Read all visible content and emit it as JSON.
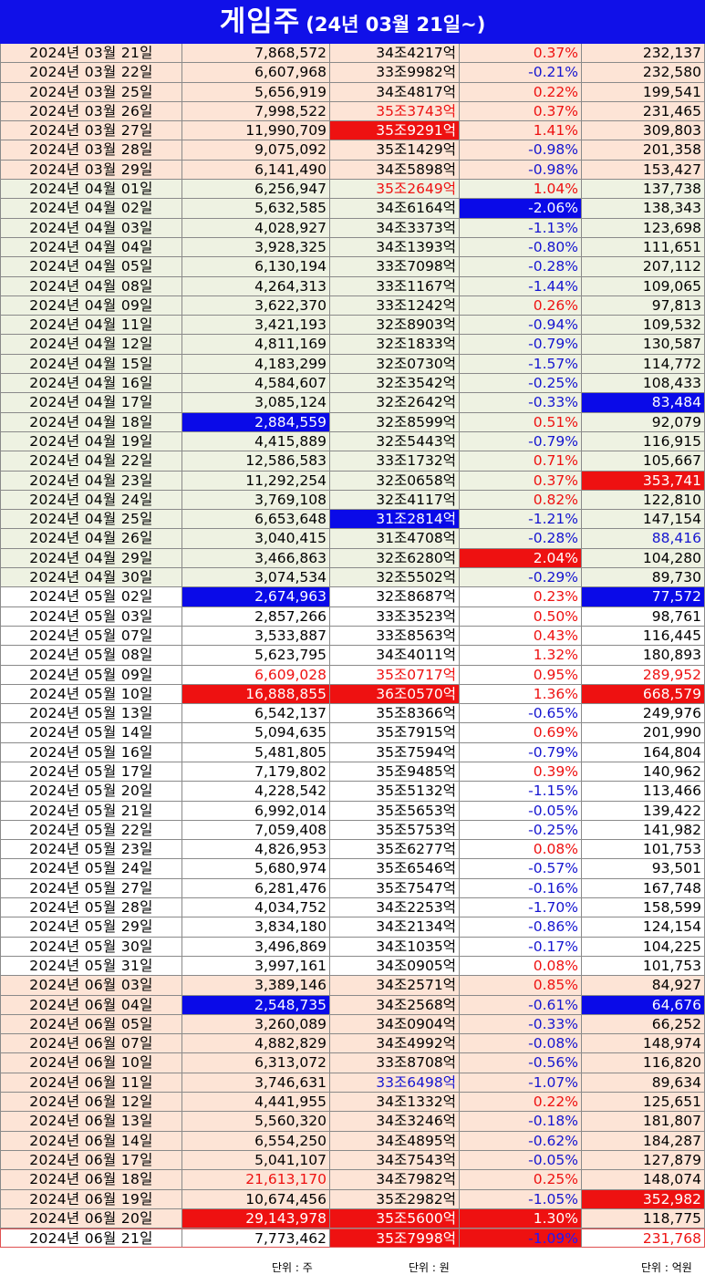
{
  "title": {
    "main": "게임주",
    "sub": "(24년 03월 21일~)"
  },
  "units": {
    "volume": "단위 : 주",
    "cap": "단위 : 원",
    "amount": "단위 : 억원"
  },
  "colors": {
    "title_bg": "#1010e8",
    "peach": "#fde4d6",
    "green": "#eef2e2",
    "red": "#ee1111",
    "blue": "#1515d0",
    "highlight_blue": "#0a0ae8"
  },
  "columns": [
    "date",
    "volume",
    "market_cap",
    "change",
    "amount"
  ],
  "rows": [
    {
      "date": "2024년 03월 21일",
      "volume": "7,868,572",
      "cap": "34조4217억",
      "chg": "0.37%",
      "amt": "232,137",
      "bg": "peach"
    },
    {
      "date": "2024년 03월 22일",
      "volume": "6,607,968",
      "cap": "33조9982억",
      "chg": "-0.21%",
      "amt": "232,580",
      "bg": "peach"
    },
    {
      "date": "2024년 03월 25일",
      "volume": "5,656,919",
      "cap": "34조4817억",
      "chg": "0.22%",
      "amt": "199,541",
      "bg": "peach"
    },
    {
      "date": "2024년 03월 26일",
      "volume": "7,998,522",
      "cap": "35조3743억",
      "chg": "0.37%",
      "amt": "231,465",
      "bg": "peach",
      "cap_style": "red"
    },
    {
      "date": "2024년 03월 27일",
      "volume": "11,990,709",
      "cap": "35조9291억",
      "chg": "1.41%",
      "amt": "309,803",
      "bg": "peach",
      "cap_style": "hl-red"
    },
    {
      "date": "2024년 03월 28일",
      "volume": "9,075,092",
      "cap": "35조1429억",
      "chg": "-0.98%",
      "amt": "201,358",
      "bg": "peach"
    },
    {
      "date": "2024년 03월 29일",
      "volume": "6,141,490",
      "cap": "34조5898억",
      "chg": "-0.98%",
      "amt": "153,427",
      "bg": "peach"
    },
    {
      "date": "2024년 04월 01일",
      "volume": "6,256,947",
      "cap": "35조2649억",
      "chg": "1.04%",
      "amt": "137,738",
      "bg": "green",
      "cap_style": "red"
    },
    {
      "date": "2024년 04월 02일",
      "volume": "5,632,585",
      "cap": "34조6164억",
      "chg": "-2.06%",
      "amt": "138,343",
      "bg": "green",
      "chg_style": "hl-blue"
    },
    {
      "date": "2024년 04월 03일",
      "volume": "4,028,927",
      "cap": "34조3373억",
      "chg": "-1.13%",
      "amt": "123,698",
      "bg": "green"
    },
    {
      "date": "2024년 04월 04일",
      "volume": "3,928,325",
      "cap": "34조1393억",
      "chg": "-0.80%",
      "amt": "111,651",
      "bg": "green"
    },
    {
      "date": "2024년 04월 05일",
      "volume": "6,130,194",
      "cap": "33조7098억",
      "chg": "-0.28%",
      "amt": "207,112",
      "bg": "green"
    },
    {
      "date": "2024년 04월 08일",
      "volume": "4,264,313",
      "cap": "33조1167억",
      "chg": "-1.44%",
      "amt": "109,065",
      "bg": "green"
    },
    {
      "date": "2024년 04월 09일",
      "volume": "3,622,370",
      "cap": "33조1242억",
      "chg": "0.26%",
      "amt": "97,813",
      "bg": "green"
    },
    {
      "date": "2024년 04월 11일",
      "volume": "3,421,193",
      "cap": "32조8903억",
      "chg": "-0.94%",
      "amt": "109,532",
      "bg": "green"
    },
    {
      "date": "2024년 04월 12일",
      "volume": "4,811,169",
      "cap": "32조1833억",
      "chg": "-0.79%",
      "amt": "130,587",
      "bg": "green"
    },
    {
      "date": "2024년 04월 15일",
      "volume": "4,183,299",
      "cap": "32조0730억",
      "chg": "-1.57%",
      "amt": "114,772",
      "bg": "green"
    },
    {
      "date": "2024년 04월 16일",
      "volume": "4,584,607",
      "cap": "32조3542억",
      "chg": "-0.25%",
      "amt": "108,433",
      "bg": "green"
    },
    {
      "date": "2024년 04월 17일",
      "volume": "3,085,124",
      "cap": "32조2642억",
      "chg": "-0.33%",
      "amt": "83,484",
      "bg": "green",
      "amt_style": "hl-blue"
    },
    {
      "date": "2024년 04월 18일",
      "volume": "2,884,559",
      "cap": "32조8599억",
      "chg": "0.51%",
      "amt": "92,079",
      "bg": "green",
      "vol_style": "hl-blue"
    },
    {
      "date": "2024년 04월 19일",
      "volume": "4,415,889",
      "cap": "32조5443억",
      "chg": "-0.79%",
      "amt": "116,915",
      "bg": "green"
    },
    {
      "date": "2024년 04월 22일",
      "volume": "12,586,583",
      "cap": "33조1732억",
      "chg": "0.71%",
      "amt": "105,667",
      "bg": "green"
    },
    {
      "date": "2024년 04월 23일",
      "volume": "11,292,254",
      "cap": "32조0658억",
      "chg": "0.37%",
      "amt": "353,741",
      "bg": "green",
      "amt_style": "hl-red"
    },
    {
      "date": "2024년 04월 24일",
      "volume": "3,769,108",
      "cap": "32조4117억",
      "chg": "0.82%",
      "amt": "122,810",
      "bg": "green"
    },
    {
      "date": "2024년 04월 25일",
      "volume": "6,653,648",
      "cap": "31조2814억",
      "chg": "-1.21%",
      "amt": "147,154",
      "bg": "green",
      "cap_style": "hl-blue"
    },
    {
      "date": "2024년 04월 26일",
      "volume": "3,040,415",
      "cap": "31조4708억",
      "chg": "-0.28%",
      "amt": "88,416",
      "bg": "green",
      "amt_style": "blue"
    },
    {
      "date": "2024년 04월 29일",
      "volume": "3,466,863",
      "cap": "32조6280억",
      "chg": "2.04%",
      "amt": "104,280",
      "bg": "green",
      "chg_style": "hl-red"
    },
    {
      "date": "2024년 04월 30일",
      "volume": "3,074,534",
      "cap": "32조5502억",
      "chg": "-0.29%",
      "amt": "89,730",
      "bg": "green"
    },
    {
      "date": "2024년 05월 02일",
      "volume": "2,674,963",
      "cap": "32조8687억",
      "chg": "0.23%",
      "amt": "77,572",
      "bg": "white",
      "vol_style": "hl-blue",
      "amt_style": "hl-blue"
    },
    {
      "date": "2024년 05월 03일",
      "volume": "2,857,266",
      "cap": "33조3523억",
      "chg": "0.50%",
      "amt": "98,761",
      "bg": "white"
    },
    {
      "date": "2024년 05월 07일",
      "volume": "3,533,887",
      "cap": "33조8563억",
      "chg": "0.43%",
      "amt": "116,445",
      "bg": "white"
    },
    {
      "date": "2024년 05월 08일",
      "volume": "5,623,795",
      "cap": "34조4011억",
      "chg": "1.32%",
      "amt": "180,893",
      "bg": "white"
    },
    {
      "date": "2024년 05월 09일",
      "volume": "6,609,028",
      "cap": "35조0717억",
      "chg": "0.95%",
      "amt": "289,952",
      "bg": "white",
      "vol_style": "red",
      "cap_style": "red",
      "amt_style": "red"
    },
    {
      "date": "2024년 05월 10일",
      "volume": "16,888,855",
      "cap": "36조0570억",
      "chg": "1.36%",
      "amt": "668,579",
      "bg": "white",
      "vol_style": "hl-red",
      "cap_style": "hl-red",
      "amt_style": "hl-red"
    },
    {
      "date": "2024년 05월 13일",
      "volume": "6,542,137",
      "cap": "35조8366억",
      "chg": "-0.65%",
      "amt": "249,976",
      "bg": "white"
    },
    {
      "date": "2024년 05월 14일",
      "volume": "5,094,635",
      "cap": "35조7915억",
      "chg": "0.69%",
      "amt": "201,990",
      "bg": "white"
    },
    {
      "date": "2024년 05월 16일",
      "volume": "5,481,805",
      "cap": "35조7594억",
      "chg": "-0.79%",
      "amt": "164,804",
      "bg": "white"
    },
    {
      "date": "2024년 05월 17일",
      "volume": "7,179,802",
      "cap": "35조9485억",
      "chg": "0.39%",
      "amt": "140,962",
      "bg": "white"
    },
    {
      "date": "2024년 05월 20일",
      "volume": "4,228,542",
      "cap": "35조5132억",
      "chg": "-1.15%",
      "amt": "113,466",
      "bg": "white"
    },
    {
      "date": "2024년 05월 21일",
      "volume": "6,992,014",
      "cap": "35조5653억",
      "chg": "-0.05%",
      "amt": "139,422",
      "bg": "white"
    },
    {
      "date": "2024년 05월 22일",
      "volume": "7,059,408",
      "cap": "35조5753억",
      "chg": "-0.25%",
      "amt": "141,982",
      "bg": "white"
    },
    {
      "date": "2024년 05월 23일",
      "volume": "4,826,953",
      "cap": "35조6277억",
      "chg": "0.08%",
      "amt": "101,753",
      "bg": "white"
    },
    {
      "date": "2024년 05월 24일",
      "volume": "5,680,974",
      "cap": "35조6546억",
      "chg": "-0.57%",
      "amt": "93,501",
      "bg": "white"
    },
    {
      "date": "2024년 05월 27일",
      "volume": "6,281,476",
      "cap": "35조7547억",
      "chg": "-0.16%",
      "amt": "167,748",
      "bg": "white"
    },
    {
      "date": "2024년 05월 28일",
      "volume": "4,034,752",
      "cap": "34조2253억",
      "chg": "-1.70%",
      "amt": "158,599",
      "bg": "white"
    },
    {
      "date": "2024년 05월 29일",
      "volume": "3,834,180",
      "cap": "34조2134억",
      "chg": "-0.86%",
      "amt": "124,154",
      "bg": "white"
    },
    {
      "date": "2024년 05월 30일",
      "volume": "3,496,869",
      "cap": "34조1035억",
      "chg": "-0.17%",
      "amt": "104,225",
      "bg": "white"
    },
    {
      "date": "2024년 05월 31일",
      "volume": "3,997,161",
      "cap": "34조0905억",
      "chg": "0.08%",
      "amt": "101,753",
      "bg": "white"
    },
    {
      "date": "2024년 06월 03일",
      "volume": "3,389,146",
      "cap": "34조2571억",
      "chg": "0.85%",
      "amt": "84,927",
      "bg": "peach"
    },
    {
      "date": "2024년 06월 04일",
      "volume": "2,548,735",
      "cap": "34조2568억",
      "chg": "-0.61%",
      "amt": "64,676",
      "bg": "peach",
      "vol_style": "hl-blue",
      "amt_style": "hl-blue"
    },
    {
      "date": "2024년 06월 05일",
      "volume": "3,260,089",
      "cap": "34조0904억",
      "chg": "-0.33%",
      "amt": "66,252",
      "bg": "peach"
    },
    {
      "date": "2024년 06월 07일",
      "volume": "4,882,829",
      "cap": "34조4992억",
      "chg": "-0.08%",
      "amt": "148,974",
      "bg": "peach"
    },
    {
      "date": "2024년 06월 10일",
      "volume": "6,313,072",
      "cap": "33조8708억",
      "chg": "-0.56%",
      "amt": "116,820",
      "bg": "peach"
    },
    {
      "date": "2024년 06월 11일",
      "volume": "3,746,631",
      "cap": "33조6498억",
      "chg": "-1.07%",
      "amt": "89,634",
      "bg": "peach",
      "cap_style": "blue"
    },
    {
      "date": "2024년 06월 12일",
      "volume": "4,441,955",
      "cap": "34조1332억",
      "chg": "0.22%",
      "amt": "125,651",
      "bg": "peach"
    },
    {
      "date": "2024년 06월 13일",
      "volume": "5,560,320",
      "cap": "34조3246억",
      "chg": "-0.18%",
      "amt": "181,807",
      "bg": "peach"
    },
    {
      "date": "2024년 06월 14일",
      "volume": "6,554,250",
      "cap": "34조4895억",
      "chg": "-0.62%",
      "amt": "184,287",
      "bg": "peach"
    },
    {
      "date": "2024년 06월 17일",
      "volume": "5,041,107",
      "cap": "34조7543억",
      "chg": "-0.05%",
      "amt": "127,879",
      "bg": "peach"
    },
    {
      "date": "2024년 06월 18일",
      "volume": "21,613,170",
      "cap": "34조7982억",
      "chg": "0.25%",
      "amt": "148,074",
      "bg": "peach",
      "vol_style": "red"
    },
    {
      "date": "2024년 06월 19일",
      "volume": "10,674,456",
      "cap": "35조2982억",
      "chg": "-1.05%",
      "amt": "352,982",
      "bg": "peach",
      "amt_style": "hl-red"
    },
    {
      "date": "2024년 06월 20일",
      "volume": "29,143,978",
      "cap": "35조5600억",
      "chg": "1.30%",
      "amt": "118,775",
      "bg": "peach",
      "vol_style": "hl-red",
      "cap_style": "hl-red",
      "chg_style": "hl-red"
    },
    {
      "date": "2024년 06월 21일",
      "volume": "7,773,462",
      "cap": "35조7998억",
      "chg": "-1.09%",
      "amt": "231,768",
      "bg": "white",
      "cap_style": "hl-red",
      "chg_style": "hl-red-blue",
      "amt_style": "red",
      "last": true
    }
  ]
}
